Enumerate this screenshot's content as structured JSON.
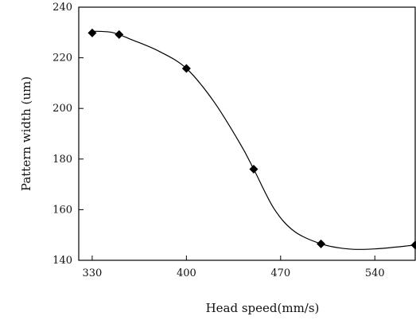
{
  "chart_data": {
    "type": "line",
    "title": "",
    "xlabel": "Head speed(mm/s)",
    "ylabel": "Pattern width (um)",
    "xlim": [
      320,
      570
    ],
    "ylim": [
      140,
      240
    ],
    "xticks": [
      "330",
      "400",
      "470",
      "540"
    ],
    "yticks": [
      "140",
      "160",
      "180",
      "200",
      "220",
      "240"
    ],
    "grid": false,
    "legend": "none",
    "series": [
      {
        "marker": "diamond",
        "color": "#000000",
        "points": [
          {
            "x": 330,
            "y": 229.8
          },
          {
            "x": 350,
            "y": 229.2
          },
          {
            "x": 400,
            "y": 215.8
          },
          {
            "x": 450,
            "y": 176.0
          },
          {
            "x": 500,
            "y": 146.5
          },
          {
            "x": 570,
            "y": 146.0
          }
        ],
        "curve_points": [
          {
            "x": 330,
            "y": 230.5
          },
          {
            "x": 345,
            "y": 230.0
          },
          {
            "x": 360,
            "y": 227.0
          },
          {
            "x": 380,
            "y": 222.5
          },
          {
            "x": 400,
            "y": 215.8
          },
          {
            "x": 420,
            "y": 203.0
          },
          {
            "x": 440,
            "y": 186.0
          },
          {
            "x": 450,
            "y": 176.0
          },
          {
            "x": 465,
            "y": 160.5
          },
          {
            "x": 480,
            "y": 151.5
          },
          {
            "x": 500,
            "y": 146.5
          },
          {
            "x": 520,
            "y": 144.5
          },
          {
            "x": 540,
            "y": 144.5
          },
          {
            "x": 570,
            "y": 146.0
          }
        ]
      }
    ]
  }
}
